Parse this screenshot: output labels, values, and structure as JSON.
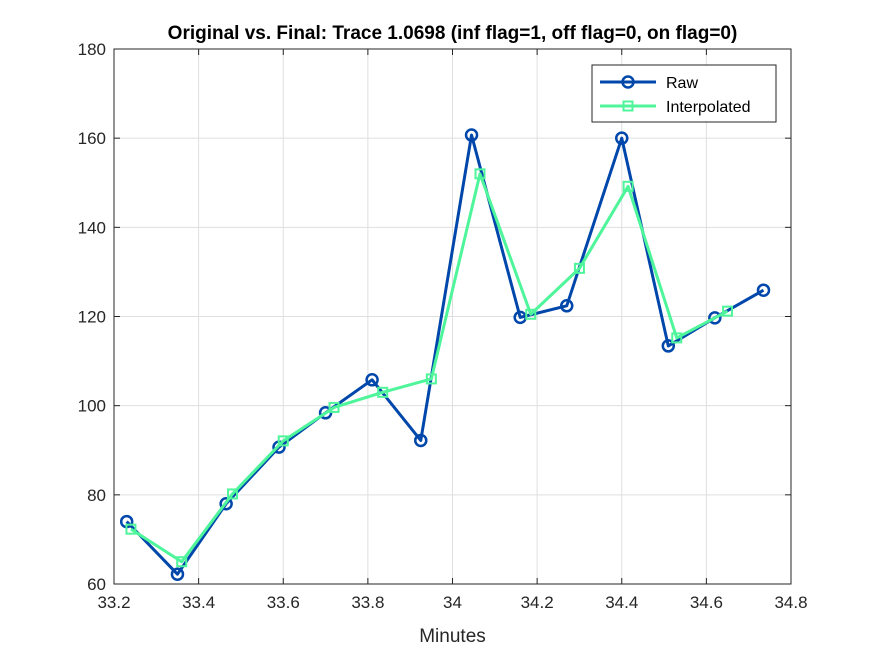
{
  "chart_data": {
    "type": "line",
    "title": "Original vs. Final: Trace 1.0698 (inf flag=1, off flag=0, on flag=0)",
    "xlabel": "Minutes",
    "ylabel": "",
    "xlim": [
      33.2,
      34.8
    ],
    "ylim": [
      60,
      180
    ],
    "xticks": [
      33.2,
      33.4,
      33.6,
      33.8,
      34,
      34.2,
      34.4,
      34.6,
      34.8
    ],
    "xtick_labels": [
      "33.2",
      "33.4",
      "33.6",
      "33.8",
      "34",
      "34.2",
      "34.4",
      "34.6",
      "34.8"
    ],
    "yticks": [
      60,
      80,
      100,
      120,
      140,
      160,
      180
    ],
    "ytick_labels": [
      "60",
      "80",
      "100",
      "120",
      "140",
      "160",
      "180"
    ],
    "grid": true,
    "legend_position": "top-right",
    "series": [
      {
        "name": "Raw",
        "color": "#0047AB",
        "marker": "circle",
        "x": [
          33.23,
          33.35,
          33.465,
          33.59,
          33.7,
          33.81,
          33.925,
          34.045,
          34.16,
          34.27,
          34.4,
          34.51,
          34.62,
          34.735
        ],
        "y": [
          74,
          62.2,
          78,
          90.7,
          98.4,
          105.8,
          92.2,
          160.7,
          119.8,
          122.4,
          160,
          113.4,
          119.7,
          125.9
        ]
      },
      {
        "name": "Interpolated",
        "color": "#4EF59A",
        "marker": "square",
        "x": [
          33.24,
          33.36,
          33.48,
          33.6,
          33.72,
          33.835,
          33.95,
          34.065,
          34.185,
          34.3,
          34.415,
          34.53,
          34.65
        ],
        "y": [
          72.3,
          65,
          80.2,
          92.1,
          99.6,
          103,
          106,
          152,
          120.5,
          130.8,
          149.2,
          115.2,
          121.2
        ]
      }
    ]
  }
}
